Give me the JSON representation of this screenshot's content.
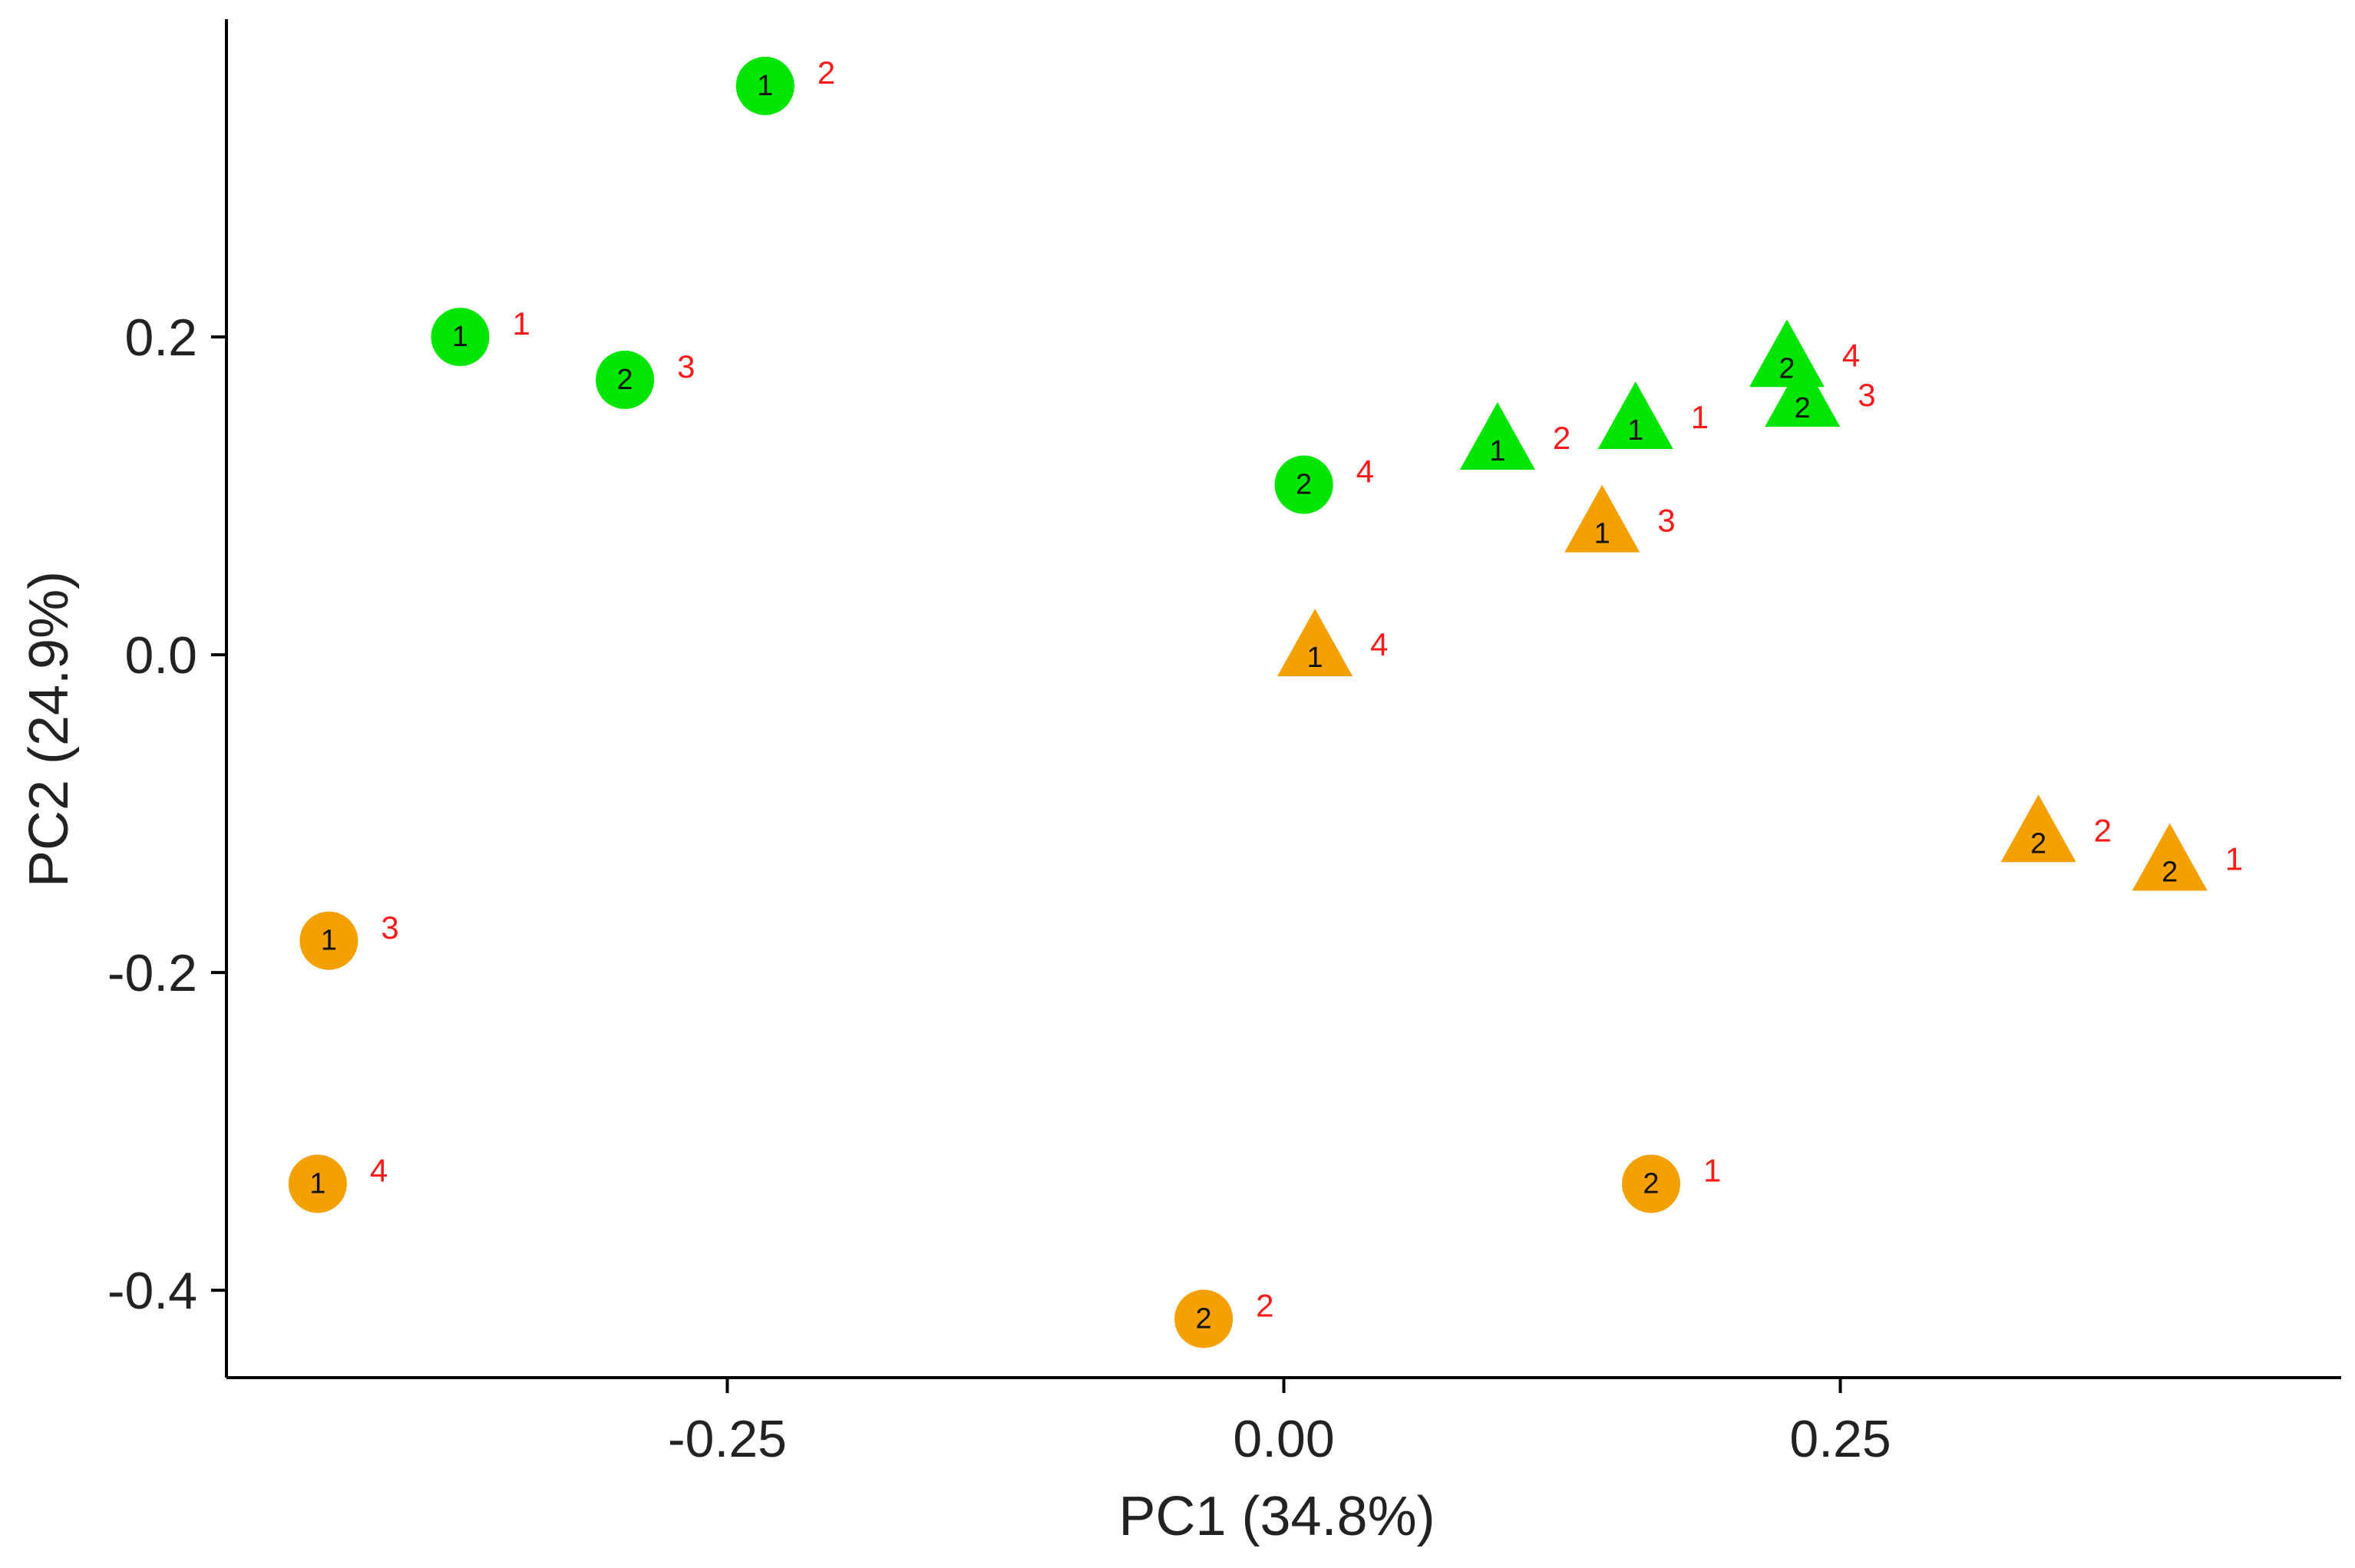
{
  "chart_data": {
    "type": "scatter",
    "title": "",
    "xlabel": "PC1 (34.8%)",
    "ylabel": "PC2 (24.9%)",
    "xlim": [
      -0.475,
      0.475
    ],
    "ylim": [
      -0.455,
      0.4
    ],
    "x_ticks": [
      {
        "value": -0.25,
        "label": "-0.25"
      },
      {
        "value": 0.0,
        "label": "0.00"
      },
      {
        "value": 0.25,
        "label": "0.25"
      }
    ],
    "y_ticks": [
      {
        "value": 0.2,
        "label": "0.2"
      },
      {
        "value": 0.0,
        "label": "0.0"
      },
      {
        "value": -0.2,
        "label": "-0.2"
      },
      {
        "value": -0.4,
        "label": "-0.4"
      }
    ],
    "colors": {
      "green": "#00e600",
      "orange": "#f4a000",
      "label": "#ff1a1a"
    },
    "points": [
      {
        "x": -0.233,
        "y": 0.358,
        "shape": "circle",
        "color": "green",
        "inner": "1",
        "rep": "2"
      },
      {
        "x": -0.37,
        "y": 0.2,
        "shape": "circle",
        "color": "green",
        "inner": "1",
        "rep": "1"
      },
      {
        "x": -0.296,
        "y": 0.173,
        "shape": "circle",
        "color": "green",
        "inner": "2",
        "rep": "3"
      },
      {
        "x": 0.009,
        "y": 0.107,
        "shape": "circle",
        "color": "green",
        "inner": "2",
        "rep": "4"
      },
      {
        "x": 0.096,
        "y": 0.13,
        "shape": "triangle",
        "color": "green",
        "inner": "1",
        "rep": "2"
      },
      {
        "x": 0.158,
        "y": 0.143,
        "shape": "triangle",
        "color": "green",
        "inner": "1",
        "rep": "1"
      },
      {
        "x": 0.226,
        "y": 0.182,
        "shape": "triangle",
        "color": "green",
        "inner": "2",
        "rep": "4"
      },
      {
        "x": 0.233,
        "y": 0.157,
        "shape": "triangle",
        "color": "green",
        "inner": "2",
        "rep": "3"
      },
      {
        "x": 0.143,
        "y": 0.078,
        "shape": "triangle",
        "color": "orange",
        "inner": "1",
        "rep": "3"
      },
      {
        "x": 0.014,
        "y": 0.0,
        "shape": "triangle",
        "color": "orange",
        "inner": "1",
        "rep": "4"
      },
      {
        "x": 0.339,
        "y": -0.117,
        "shape": "triangle",
        "color": "orange",
        "inner": "2",
        "rep": "2"
      },
      {
        "x": 0.398,
        "y": -0.135,
        "shape": "triangle",
        "color": "orange",
        "inner": "2",
        "rep": "1"
      },
      {
        "x": -0.429,
        "y": -0.18,
        "shape": "circle",
        "color": "orange",
        "inner": "1",
        "rep": "3"
      },
      {
        "x": -0.434,
        "y": -0.333,
        "shape": "circle",
        "color": "orange",
        "inner": "1",
        "rep": "4"
      },
      {
        "x": 0.165,
        "y": -0.333,
        "shape": "circle",
        "color": "orange",
        "inner": "2",
        "rep": "1"
      },
      {
        "x": -0.036,
        "y": -0.418,
        "shape": "circle",
        "color": "orange",
        "inner": "2",
        "rep": "2"
      }
    ]
  }
}
